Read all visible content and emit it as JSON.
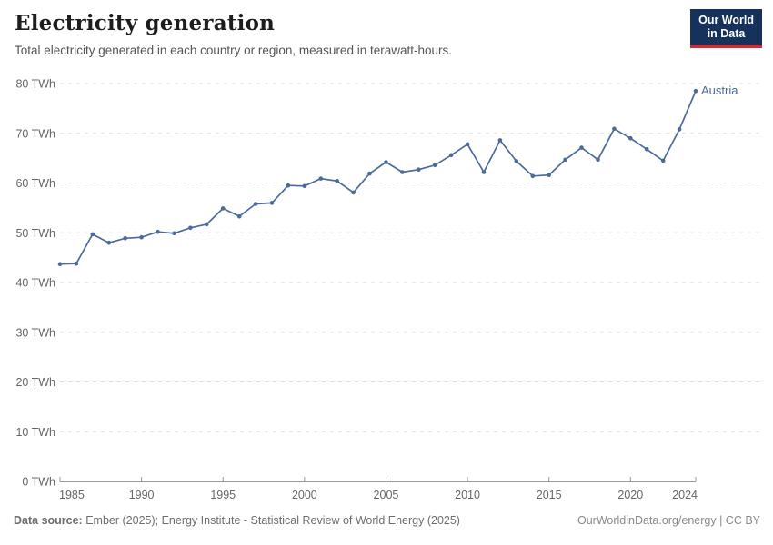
{
  "header": {
    "title": "Electricity generation",
    "subtitle": "Total electricity generated in each country or region, measured in terawatt-hours.",
    "logo": {
      "line1": "Our World",
      "line2": "in Data"
    }
  },
  "chart_data": {
    "type": "line",
    "title": "Electricity generation",
    "xlabel": "",
    "ylabel": "TWh",
    "xlim": [
      1985,
      2024
    ],
    "ylim": [
      0,
      80
    ],
    "grid": "horizontal-dashed",
    "legend_position": "end-of-line-label",
    "y_ticks": [
      0,
      10,
      20,
      30,
      40,
      50,
      60,
      70,
      80
    ],
    "y_tick_suffix": " TWh",
    "x_ticks": [
      1985,
      1990,
      1995,
      2000,
      2005,
      2010,
      2015,
      2020,
      2024
    ],
    "x": [
      1985,
      1986,
      1987,
      1988,
      1989,
      1990,
      1991,
      1992,
      1993,
      1994,
      1995,
      1996,
      1997,
      1998,
      1999,
      2000,
      2001,
      2002,
      2003,
      2004,
      2005,
      2006,
      2007,
      2008,
      2009,
      2010,
      2011,
      2012,
      2013,
      2014,
      2015,
      2016,
      2017,
      2018,
      2019,
      2020,
      2021,
      2022,
      2023,
      2024
    ],
    "series": [
      {
        "name": "Austria",
        "color": "#4c6a9c",
        "values": [
          43.7,
          43.8,
          49.7,
          48.0,
          48.9,
          49.1,
          50.2,
          49.9,
          51.0,
          51.7,
          54.9,
          53.3,
          55.8,
          56.0,
          59.5,
          59.4,
          60.9,
          60.4,
          58.1,
          61.9,
          64.2,
          62.2,
          62.7,
          63.6,
          65.6,
          67.8,
          62.2,
          68.6,
          64.4,
          61.4,
          61.6,
          64.7,
          67.1,
          64.7,
          70.9,
          69.0,
          66.8,
          64.5,
          70.8,
          78.5
        ]
      }
    ]
  },
  "footer": {
    "source_label": "Data source:",
    "source_text": " Ember (2025); Energy Institute - Statistical Review of World Energy (2025)",
    "credit": "OurWorldinData.org/energy | CC BY"
  },
  "colors": {
    "line": "#4c6a9c",
    "grid": "#dcdcdc",
    "axis": "#999999",
    "tick_label": "#666666",
    "logo_bg": "#16325a",
    "logo_red": "#c0313d"
  }
}
